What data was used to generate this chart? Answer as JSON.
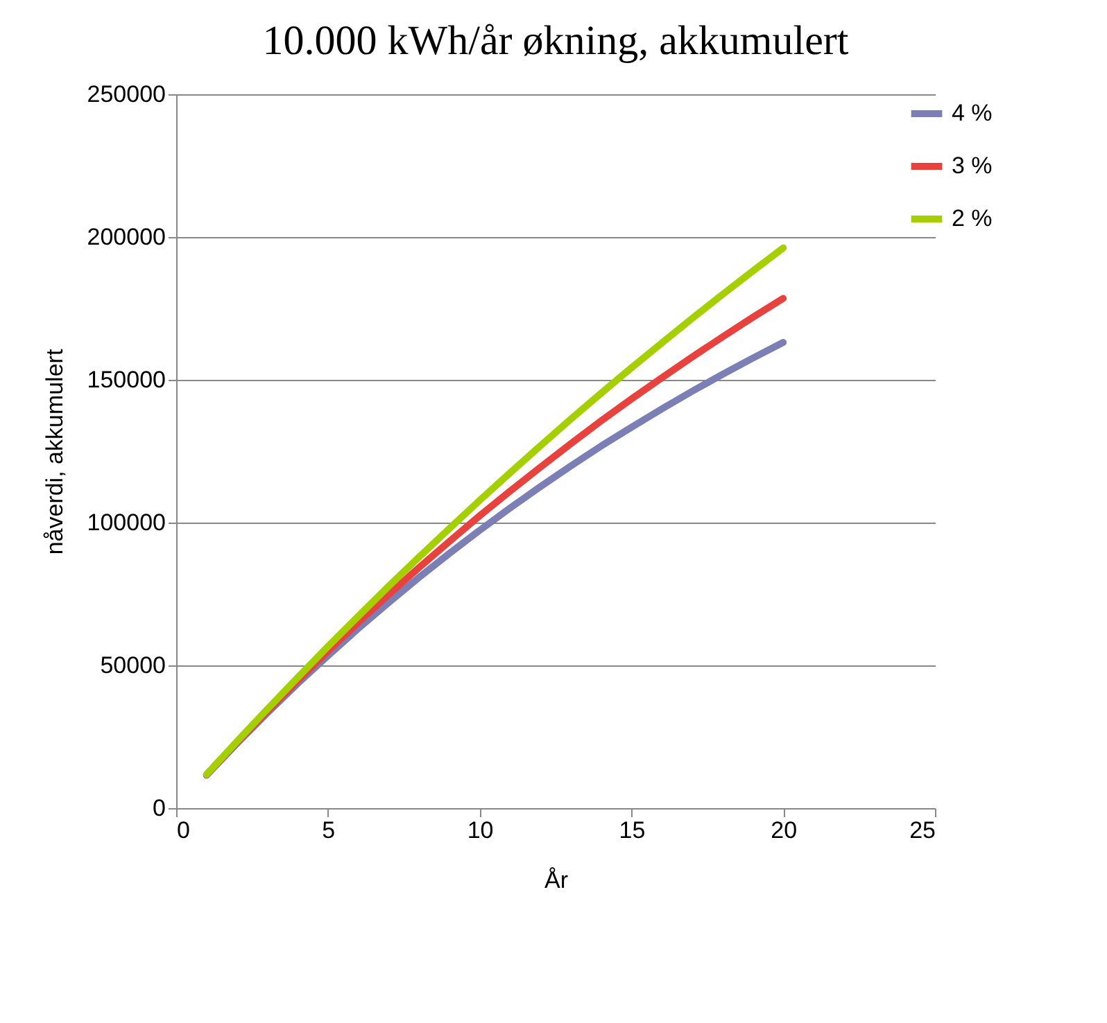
{
  "chart_data": {
    "type": "line",
    "title": "10.000 kWh/år økning, akkumulert",
    "xlabel": "År",
    "ylabel": "nåverdi, akkumulert",
    "x": [
      1,
      2,
      3,
      4,
      5,
      6,
      7,
      8,
      9,
      10,
      11,
      12,
      13,
      14,
      15,
      16,
      17,
      18,
      19,
      20
    ],
    "series": [
      {
        "name": "4 %",
        "color": "#7b7fb5",
        "values": [
          11500,
          22600,
          33300,
          43600,
          53400,
          62900,
          72000,
          80800,
          89200,
          97300,
          105100,
          112600,
          119800,
          126800,
          133400,
          139800,
          146000,
          151900,
          157600,
          163100
        ]
      },
      {
        "name": "3 %",
        "color": "#e8423e",
        "values": [
          11700,
          23000,
          33900,
          44600,
          55000,
          65000,
          74800,
          84200,
          93400,
          102400,
          111000,
          119400,
          127600,
          135600,
          143300,
          150700,
          158000,
          165000,
          171900,
          178500
        ]
      },
      {
        "name": "2 %",
        "color": "#a6cf00",
        "values": [
          11800,
          23300,
          34600,
          45700,
          56600,
          67200,
          77700,
          87900,
          97900,
          107800,
          117400,
          126900,
          136200,
          145300,
          154200,
          162900,
          171500,
          179900,
          188100,
          196200
        ]
      }
    ],
    "xlim": [
      0,
      25
    ],
    "xticks": [
      0,
      5,
      10,
      15,
      20,
      25
    ],
    "ylim": [
      0,
      250000
    ],
    "yticks": [
      0,
      50000,
      100000,
      150000,
      200000,
      250000
    ],
    "grid": "y",
    "legend": "right",
    "marker": "none",
    "line_style": "solid"
  }
}
